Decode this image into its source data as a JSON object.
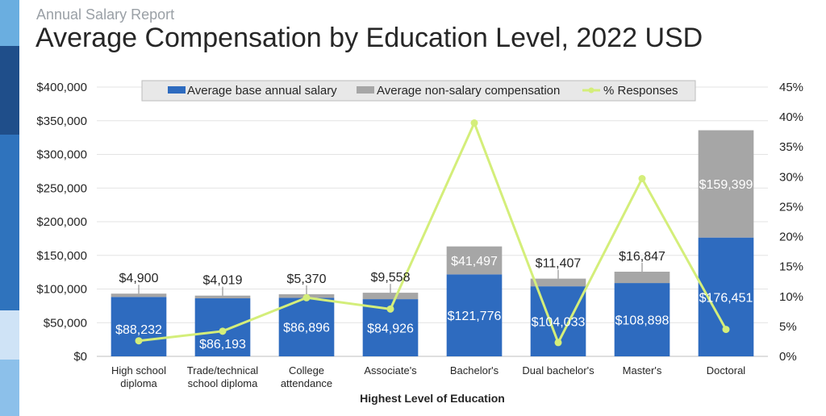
{
  "report": {
    "subtitle": "Annual Salary Report",
    "title": "Average Compensation by Education Level, 2022 USD"
  },
  "colors": {
    "base": "#2e6bbf",
    "nonsalary": "#a6a6a6",
    "responses": "#d4ee7a",
    "strip": [
      "#6aaee0",
      "#1f4e8a",
      "#2f73bd",
      "#2f73bd",
      "#cfe3f6",
      "#8cc0ea"
    ]
  },
  "chart_data": {
    "type": "bar",
    "stacked": true,
    "categories": [
      "High school diploma",
      "Trade/technical school diploma",
      "College attendance",
      "Associate's",
      "Bachelor's",
      "Dual bachelor's",
      "Master's",
      "Doctoral"
    ],
    "category_lines": [
      [
        "High school",
        "diploma"
      ],
      [
        "Trade/technical",
        "school diploma"
      ],
      [
        "College",
        "attendance"
      ],
      [
        "Associate's"
      ],
      [
        "Bachelor's"
      ],
      [
        "Dual bachelor's"
      ],
      [
        "Master's"
      ],
      [
        "Doctoral"
      ]
    ],
    "series": [
      {
        "name": "Average base annual salary",
        "type": "bar",
        "axis": "left",
        "values": [
          88232,
          86193,
          86896,
          84926,
          121776,
          104033,
          108898,
          176451
        ],
        "labels": [
          "$88,232",
          "$86,193",
          "$86,896",
          "$84,926",
          "$121,776",
          "$104,033",
          "$108,898",
          "$176,451"
        ]
      },
      {
        "name": "Average non-salary compensation",
        "type": "bar",
        "axis": "left",
        "values": [
          4900,
          4019,
          5370,
          9558,
          41497,
          11407,
          16847,
          159399
        ],
        "labels": [
          "$4,900",
          "$4,019",
          "$5,370",
          "$9,558",
          "$41,497",
          "$11,407",
          "$16,847",
          "$159,399"
        ]
      },
      {
        "name": "% Responses",
        "type": "line",
        "axis": "right",
        "values": [
          2.6,
          4.2,
          9.8,
          7.9,
          39.0,
          2.3,
          29.7,
          4.5
        ]
      }
    ],
    "xlabel": "Highest Level of Education",
    "ylabel": "",
    "ylim": [
      0,
      400000
    ],
    "y_ticks": [
      "$0",
      "$50,000",
      "$100,000",
      "$150,000",
      "$200,000",
      "$250,000",
      "$300,000",
      "$350,000",
      "$400,000"
    ],
    "y2lim": [
      0,
      45
    ],
    "y2_ticks": [
      "0%",
      "5%",
      "10%",
      "15%",
      "20%",
      "25%",
      "30%",
      "35%",
      "40%",
      "45%"
    ],
    "grid": true,
    "legend_position": "top"
  }
}
